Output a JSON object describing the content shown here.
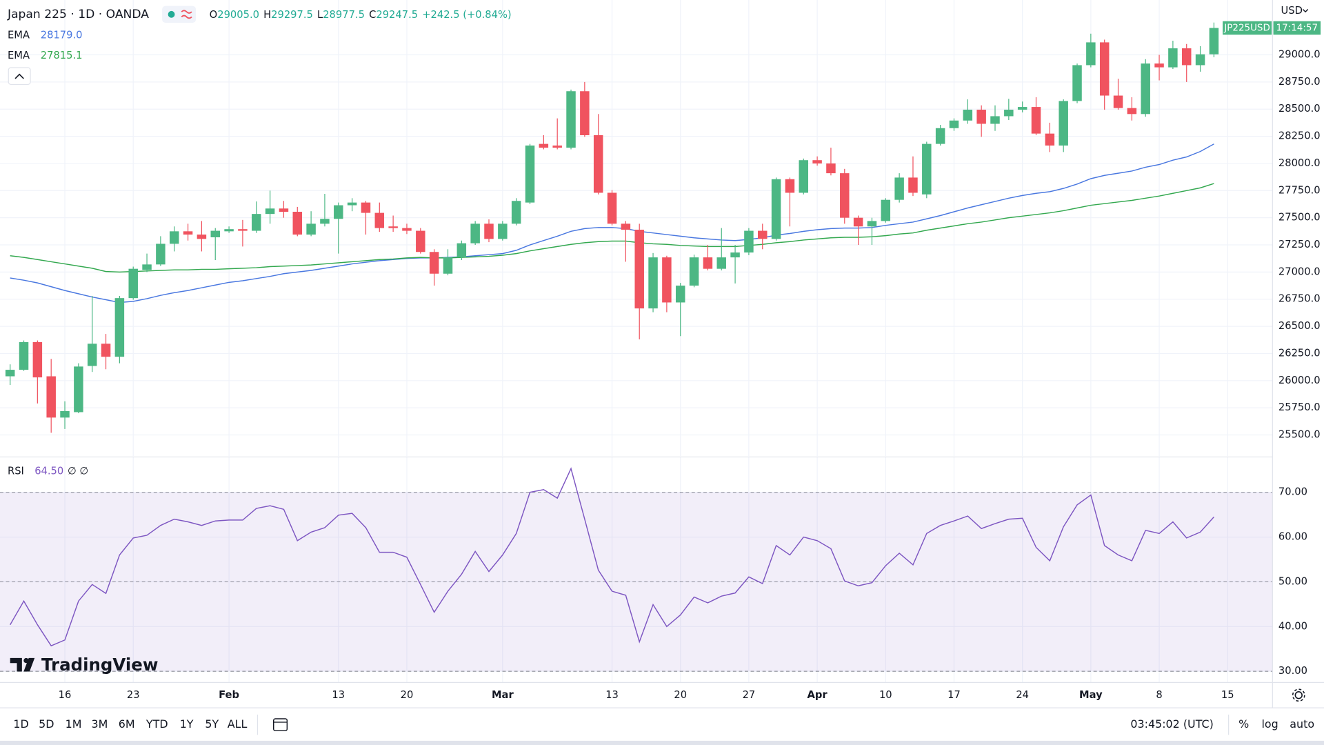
{
  "header": {
    "title": "Japan 225 · 1D · OANDA",
    "ohlc": [
      {
        "key": "O",
        "text": "29005.0"
      },
      {
        "key": "H",
        "text": "29297.5"
      },
      {
        "key": "L",
        "text": "28977.5"
      },
      {
        "key": "C",
        "text": "29247.5"
      }
    ],
    "change": "+242.5 (+0.84%)"
  },
  "chart_data": {
    "type": "candlestick",
    "currency": "USD",
    "symbol_tag": "JP225USD",
    "countdown": "17:14:57",
    "up_color": "#4cb784",
    "down_color": "#f0535f",
    "open": [
      26040,
      26100,
      26355,
      26040,
      25660,
      25710,
      26135,
      26340,
      26220,
      26760,
      27020,
      27070,
      27260,
      27375,
      27345,
      27320,
      27375,
      27395,
      27380,
      27535,
      27585,
      27555,
      27345,
      27445,
      27490,
      27615,
      27640,
      27545,
      27420,
      27405,
      27380,
      27185,
      26985,
      27135,
      27265,
      27445,
      27305,
      27445,
      27640,
      28180,
      28165,
      28145,
      28665,
      28260,
      27730,
      27445,
      27390,
      26665,
      27135,
      26720,
      26875,
      27135,
      27030,
      27135,
      27180,
      27380,
      27305,
      27855,
      27730,
      28030,
      28000,
      27910,
      27500,
      27420,
      27470,
      27665,
      27870,
      27715,
      28180,
      28325,
      28395,
      28495,
      28365,
      28435,
      28495,
      28520,
      28275,
      28165,
      28575,
      28905,
      29115,
      28625,
      28510,
      28455,
      28920,
      28885,
      29060,
      28905,
      29005
    ],
    "high": [
      26150,
      26370,
      26370,
      26200,
      25810,
      26160,
      26780,
      26430,
      26780,
      27050,
      27170,
      27330,
      27420,
      27445,
      27470,
      27405,
      27420,
      27480,
      27650,
      27750,
      27655,
      27600,
      27560,
      27720,
      27640,
      27680,
      27655,
      27640,
      27520,
      27445,
      27405,
      27210,
      27210,
      27290,
      27470,
      27485,
      27470,
      27680,
      28180,
      28260,
      28415,
      28680,
      28750,
      28455,
      27755,
      27470,
      27445,
      27175,
      27150,
      26900,
      27160,
      27250,
      27405,
      27250,
      27405,
      27445,
      27870,
      27870,
      28045,
      28065,
      28145,
      27950,
      27520,
      27500,
      27680,
      27910,
      28065,
      28200,
      28355,
      28415,
      28590,
      28535,
      28535,
      28595,
      28570,
      28610,
      28375,
      28590,
      28920,
      29195,
      29140,
      28780,
      28610,
      28960,
      29000,
      29130,
      29100,
      29080,
      29297.5
    ],
    "low": [
      25960,
      26090,
      25790,
      25520,
      25555,
      25700,
      26080,
      26105,
      26160,
      26745,
      27000,
      27055,
      27190,
      27290,
      27190,
      27110,
      27360,
      27235,
      27360,
      27445,
      27500,
      27330,
      27330,
      27420,
      27170,
      27560,
      27345,
      27370,
      27370,
      27350,
      27170,
      26875,
      26970,
      27110,
      27250,
      27275,
      27290,
      27430,
      27625,
      28130,
      28130,
      28130,
      28245,
      27715,
      27430,
      27095,
      26380,
      26630,
      26630,
      26410,
      26860,
      27015,
      27015,
      26895,
      27155,
      27210,
      27290,
      27420,
      27715,
      27980,
      27890,
      27445,
      27250,
      27250,
      27455,
      27640,
      27700,
      27680,
      28165,
      28300,
      28365,
      28245,
      28300,
      28400,
      28470,
      28260,
      28105,
      28105,
      28555,
      28885,
      28495,
      28495,
      28395,
      28430,
      28765,
      28870,
      28750,
      28845,
      28977.5
    ],
    "close": [
      26100,
      26355,
      26030,
      25660,
      25720,
      26130,
      26340,
      26220,
      26760,
      27030,
      27070,
      27260,
      27375,
      27345,
      27305,
      27380,
      27395,
      27380,
      27535,
      27585,
      27555,
      27345,
      27445,
      27490,
      27615,
      27640,
      27545,
      27405,
      27405,
      27380,
      27185,
      26985,
      27135,
      27265,
      27445,
      27305,
      27445,
      27655,
      28165,
      28145,
      28145,
      28665,
      28260,
      27730,
      27445,
      27390,
      26665,
      27135,
      26720,
      26875,
      27135,
      27030,
      27135,
      27180,
      27380,
      27305,
      27855,
      27730,
      28030,
      28000,
      27910,
      27500,
      27420,
      27470,
      27665,
      27870,
      27730,
      28180,
      28325,
      28395,
      28495,
      28365,
      28435,
      28495,
      28520,
      28275,
      28165,
      28575,
      28905,
      29115,
      28625,
      28510,
      28455,
      28920,
      28885,
      29060,
      28905,
      29005,
      29247.5
    ],
    "series": [
      {
        "name": "EMA",
        "color": "#4a78e0",
        "last_label": "28179.0",
        "values": [
          26945,
          26925,
          26900,
          26865,
          26830,
          26800,
          26770,
          26745,
          26720,
          26730,
          26755,
          26785,
          26810,
          26830,
          26855,
          26880,
          26905,
          26920,
          26940,
          26960,
          26985,
          27000,
          27015,
          27035,
          27055,
          27075,
          27090,
          27105,
          27115,
          27125,
          27130,
          27130,
          27135,
          27140,
          27150,
          27160,
          27170,
          27200,
          27250,
          27290,
          27330,
          27375,
          27400,
          27410,
          27410,
          27400,
          27375,
          27360,
          27345,
          27330,
          27315,
          27305,
          27295,
          27290,
          27300,
          27315,
          27340,
          27355,
          27375,
          27390,
          27400,
          27405,
          27405,
          27410,
          27430,
          27445,
          27460,
          27490,
          27520,
          27555,
          27590,
          27620,
          27650,
          27680,
          27705,
          27725,
          27740,
          27770,
          27810,
          27860,
          27890,
          27910,
          27930,
          27965,
          27990,
          28030,
          28060,
          28110,
          28179
        ]
      },
      {
        "name": "EMA",
        "color": "#33a84f",
        "last_label": "27815.1",
        "values": [
          27150,
          27135,
          27115,
          27095,
          27075,
          27055,
          27035,
          27005,
          27000,
          27005,
          27010,
          27015,
          27020,
          27020,
          27025,
          27025,
          27030,
          27035,
          27040,
          27050,
          27055,
          27060,
          27065,
          27075,
          27085,
          27095,
          27105,
          27115,
          27120,
          27130,
          27135,
          27130,
          27130,
          27135,
          27140,
          27145,
          27155,
          27170,
          27195,
          27215,
          27235,
          27255,
          27270,
          27280,
          27285,
          27285,
          27270,
          27260,
          27255,
          27245,
          27240,
          27235,
          27235,
          27235,
          27245,
          27255,
          27270,
          27280,
          27295,
          27305,
          27315,
          27320,
          27320,
          27325,
          27335,
          27350,
          27360,
          27385,
          27405,
          27425,
          27445,
          27460,
          27480,
          27500,
          27515,
          27530,
          27545,
          27565,
          27590,
          27615,
          27630,
          27645,
          27660,
          27680,
          27700,
          27725,
          27750,
          27775,
          27815.1
        ]
      }
    ],
    "xlim": [
      -0.74,
      92.28
    ],
    "xticks": [
      {
        "value": 4,
        "label": "16"
      },
      {
        "value": 9,
        "label": "23"
      },
      {
        "value": 16,
        "label": "Feb"
      },
      {
        "value": 24,
        "label": "13"
      },
      {
        "value": 29,
        "label": "20"
      },
      {
        "value": 36,
        "label": "Mar"
      },
      {
        "value": 44,
        "label": "13"
      },
      {
        "value": 49,
        "label": "20"
      },
      {
        "value": 54,
        "label": "27"
      },
      {
        "value": 59,
        "label": "Apr"
      },
      {
        "value": 64,
        "label": "10"
      },
      {
        "value": 69,
        "label": "17"
      },
      {
        "value": 74,
        "label": "24"
      },
      {
        "value": 79,
        "label": "May"
      },
      {
        "value": 84,
        "label": "8"
      },
      {
        "value": 89,
        "label": "15"
      }
    ],
    "ylim": [
      25305,
      29505
    ],
    "yticks": [
      {
        "value": 25500,
        "label": "25500.0"
      },
      {
        "value": 25750,
        "label": "25750.0"
      },
      {
        "value": 26000,
        "label": "26000.0"
      },
      {
        "value": 26250,
        "label": "26250.0"
      },
      {
        "value": 26500,
        "label": "26500.0"
      },
      {
        "value": 26750,
        "label": "26750.0"
      },
      {
        "value": 27000,
        "label": "27000.0"
      },
      {
        "value": 27250,
        "label": "27250.0"
      },
      {
        "value": 27500,
        "label": "27500.0"
      },
      {
        "value": 27750,
        "label": "27750.0"
      },
      {
        "value": 28000,
        "label": "28000.0"
      },
      {
        "value": 28250,
        "label": "28250.0"
      },
      {
        "value": 28500,
        "label": "28500.0"
      },
      {
        "value": 28750,
        "label": "28750.0"
      },
      {
        "value": 29000,
        "label": "29000.0"
      }
    ],
    "grid": true,
    "rsi": {
      "name": "RSI",
      "last_label": "64.50",
      "extra": "∅ ∅",
      "color": "#7e57c2",
      "values": [
        40.4,
        45.7,
        40.4,
        35.7,
        37,
        45.7,
        49.4,
        47.4,
        56,
        59.8,
        60.4,
        62.6,
        64,
        63.4,
        62.6,
        63.6,
        63.8,
        63.8,
        66.4,
        67,
        66.2,
        59.2,
        61.1,
        62.1,
        64.9,
        65.3,
        62.1,
        56.6,
        56.6,
        55.5,
        49.4,
        43.2,
        47.9,
        51.7,
        56.8,
        52.3,
        56,
        60.8,
        70,
        70.6,
        68.7,
        75.3,
        64,
        52.6,
        47.9,
        47,
        36.6,
        44.9,
        40,
        42.6,
        46.6,
        45.3,
        46.8,
        47.5,
        51.1,
        49.6,
        58.1,
        56,
        60,
        59.2,
        57.4,
        50.2,
        49.1,
        49.8,
        53.6,
        56.4,
        53.8,
        60.8,
        62.6,
        63.6,
        64.7,
        61.9,
        63,
        64,
        64.2,
        57.7,
        54.7,
        62.3,
        67.2,
        69.4,
        58.1,
        56,
        54.7,
        61.5,
        60.8,
        63.4,
        59.8,
        61.1,
        64.5
      ],
      "ylim": [
        27.5,
        77.9
      ],
      "yticks": [
        {
          "value": 30,
          "label": "30.00"
        },
        {
          "value": 40,
          "label": "40.00"
        },
        {
          "value": 50,
          "label": "50.00"
        },
        {
          "value": 60,
          "label": "60.00"
        },
        {
          "value": 70,
          "label": "70.00"
        }
      ],
      "band": [
        30,
        70
      ],
      "dashed": [
        30,
        50,
        70
      ]
    }
  },
  "branding": "TradingView",
  "toolbar": {
    "ranges": [
      "1D",
      "5D",
      "1M",
      "3M",
      "6M",
      "YTD",
      "1Y",
      "5Y",
      "ALL"
    ],
    "clock": "03:45:02 (UTC)",
    "options": [
      "%",
      "log",
      "auto"
    ]
  }
}
